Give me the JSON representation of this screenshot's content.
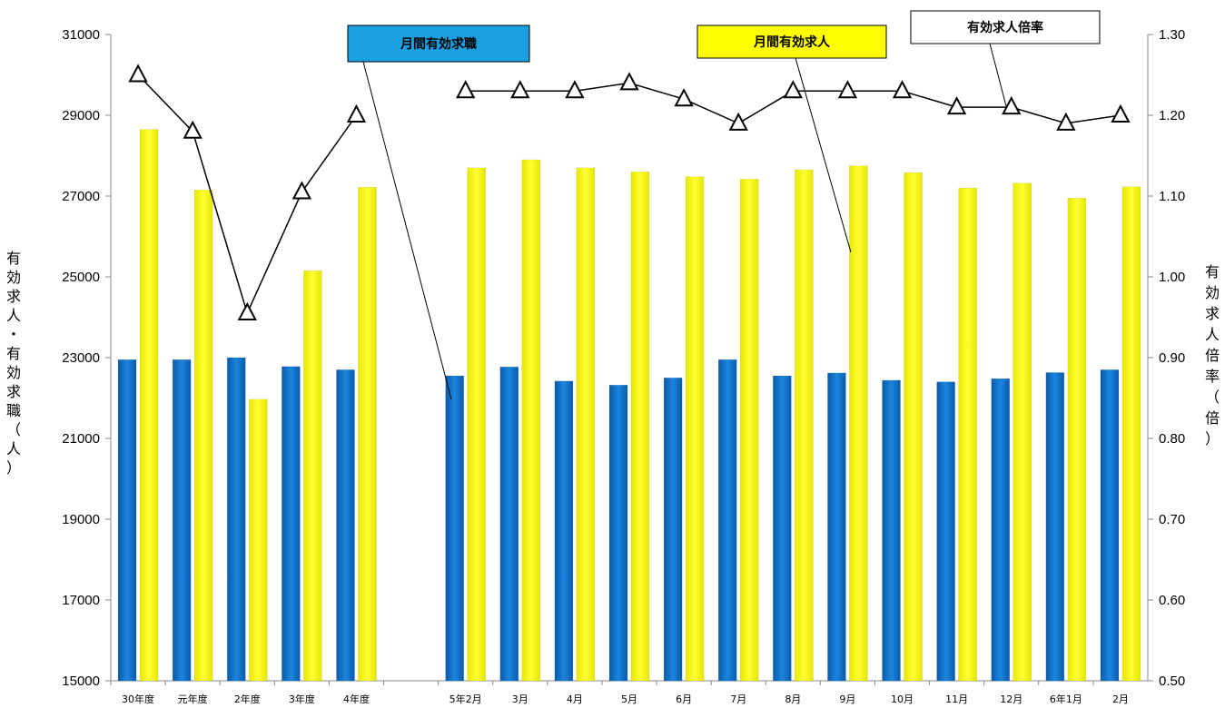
{
  "chart_data": {
    "type": "bar",
    "categories": [
      "30年度",
      "元年度",
      "2年度",
      "3年度",
      "4年度",
      "",
      "5年2月",
      "3月",
      "4月",
      "5月",
      "6月",
      "7月",
      "8月",
      "9月",
      "10月",
      "11月",
      "12月",
      "6年1月",
      "2月"
    ],
    "series": [
      {
        "name": "月間有効求職",
        "axis": "left",
        "type": "bar",
        "color": "#0d6fc4",
        "values": [
          22950,
          22950,
          23000,
          22780,
          22700,
          null,
          22550,
          22770,
          22420,
          22320,
          22500,
          22950,
          22550,
          22620,
          22440,
          22400,
          22480,
          22630,
          22700
        ]
      },
      {
        "name": "月間有効求人",
        "axis": "left",
        "type": "bar",
        "color": "#ffff00",
        "values": [
          28650,
          27150,
          21970,
          25150,
          27220,
          null,
          27700,
          27900,
          27700,
          27600,
          27480,
          27420,
          27650,
          27750,
          27580,
          27200,
          27320,
          26950,
          27230
        ]
      },
      {
        "name": "有効求人倍率",
        "axis": "right",
        "type": "line",
        "color": "#000000",
        "values": [
          1.25,
          1.18,
          0.955,
          1.105,
          1.2,
          null,
          1.23,
          1.23,
          1.23,
          1.24,
          1.22,
          1.19,
          1.23,
          1.23,
          1.23,
          1.21,
          1.21,
          1.19,
          1.2
        ]
      }
    ],
    "y_left": {
      "label": "有効求人・有効求職（人）",
      "range": [
        15000,
        31000
      ],
      "ticks": [
        "15000",
        "17000",
        "19000",
        "21000",
        "23000",
        "25000",
        "27000",
        "29000",
        "31000"
      ]
    },
    "y_right": {
      "label": "有効求人倍率（倍）",
      "range": [
        0.5,
        1.3
      ],
      "ticks": [
        "0.50",
        "0.60",
        "0.70",
        "0.80",
        "0.90",
        "1.00",
        "1.10",
        "1.20",
        "1.30"
      ]
    },
    "grid": false,
    "legend": "callouts"
  },
  "callouts": {
    "seeker": "月間有効求職",
    "offer": "月間有効求人",
    "ratio": "有効求人倍率"
  }
}
